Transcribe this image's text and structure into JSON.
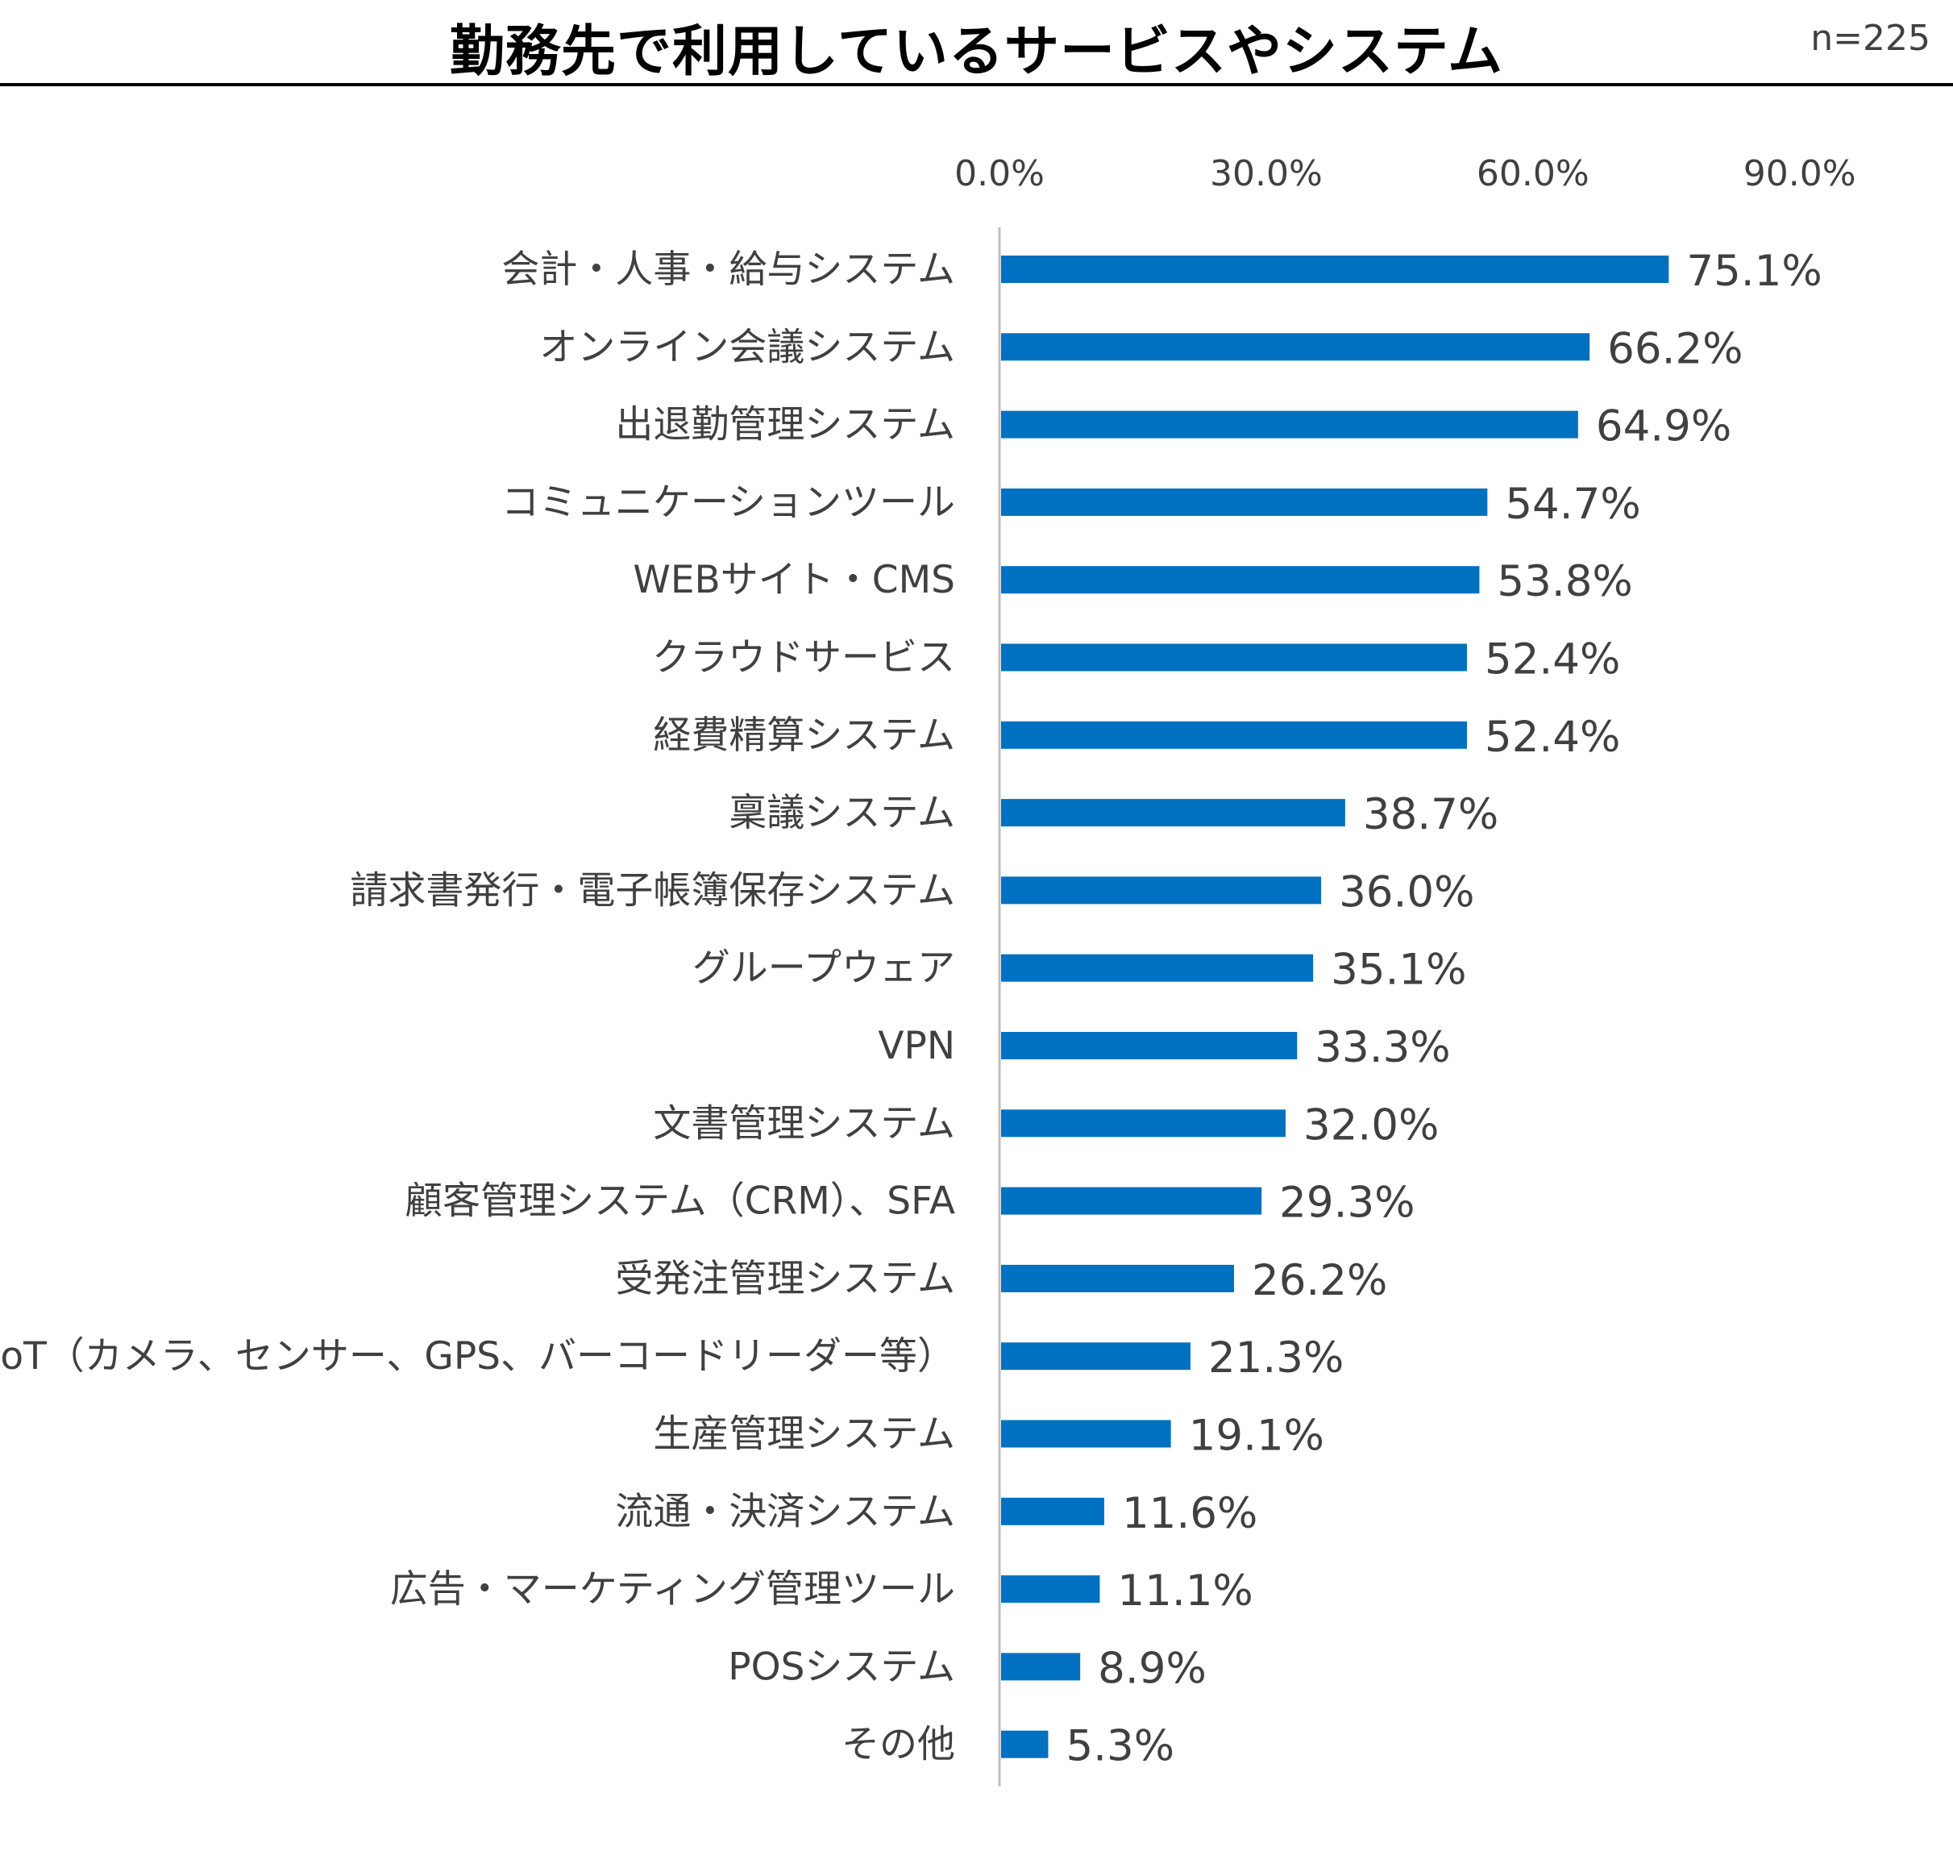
{
  "header": {
    "title": "勤務先で利用しているサービスやシステム",
    "sample_size": "n=225"
  },
  "colors": {
    "bar": "#0070C0",
    "axis": "#BFBFBF",
    "text": "#404040",
    "title": "#000000"
  },
  "chart_data": {
    "type": "bar",
    "orientation": "horizontal",
    "title": "勤務先で利用しているサービスやシステム",
    "xlim": [
      0,
      100
    ],
    "x_ticks": [
      0,
      30,
      60,
      90
    ],
    "x_tick_labels": [
      "0.0%",
      "30.0%",
      "60.0%",
      "90.0%"
    ],
    "tick_position": "top",
    "grid": false,
    "categories": [
      "会計・人事・給与システム",
      "オンライン会議システム",
      "出退勤管理システム",
      "コミュニケーションツール",
      "WEBサイト・CMS",
      "クラウドサービス",
      "経費精算システム",
      "稟議システム",
      "請求書発行・電子帳簿保存システム",
      "グループウェア",
      "VPN",
      "文書管理システム",
      "顧客管理システム（CRM）、SFA",
      "受発注管理システム",
      "IoT（カメラ、センサー、GPS、バーコードリーダー等）",
      "生産管理システム",
      "流通・決済システム",
      "広告・マーケティング管理ツール",
      "POSシステム",
      "その他"
    ],
    "values": [
      75.1,
      66.2,
      64.9,
      54.7,
      53.8,
      52.4,
      52.4,
      38.7,
      36.0,
      35.1,
      33.3,
      32.0,
      29.3,
      26.2,
      21.3,
      19.1,
      11.6,
      11.1,
      8.9,
      5.3
    ],
    "value_labels": [
      "75.1%",
      "66.2%",
      "64.9%",
      "54.7%",
      "53.8%",
      "52.4%",
      "52.4%",
      "38.7%",
      "36.0%",
      "35.1%",
      "33.3%",
      "32.0%",
      "29.3%",
      "26.2%",
      "21.3%",
      "19.1%",
      "11.6%",
      "11.1%",
      "8.9%",
      "5.3%"
    ]
  }
}
